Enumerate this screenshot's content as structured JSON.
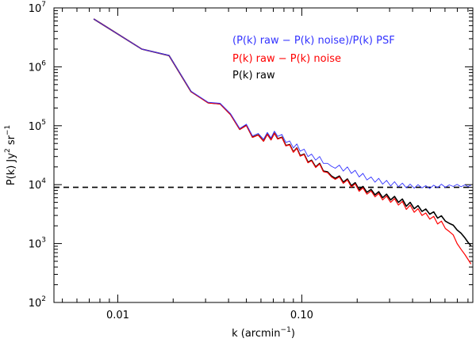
{
  "chart_data": {
    "type": "line",
    "xscale": "log",
    "yscale": "log",
    "xlim": [
      0.0045,
      0.85
    ],
    "ylim": [
      100,
      10000000
    ],
    "xlabel_main": "k (arcmin",
    "xlabel_sup": "−1",
    "xlabel_close": ")",
    "ylabel_main": "P(k) Jy",
    "ylabel_sup1": "2",
    "ylabel_mid": " sr",
    "ylabel_sup2": "−1",
    "xticks": [
      {
        "value": 0.01,
        "label": "0.01"
      },
      {
        "value": 0.1,
        "label": "0.10"
      }
    ],
    "yticks": [
      {
        "value": 100,
        "base": "10",
        "exp": "2"
      },
      {
        "value": 1000,
        "base": "10",
        "exp": "3"
      },
      {
        "value": 10000,
        "base": "10",
        "exp": "4"
      },
      {
        "value": 100000,
        "base": "10",
        "exp": "5"
      },
      {
        "value": 1000000,
        "base": "10",
        "exp": "6"
      },
      {
        "value": 10000000,
        "base": "10",
        "exp": "7"
      }
    ],
    "legend": [
      {
        "label": "(P(k) raw − P(k) noise)/P(k) PSF",
        "color": "#3333ff"
      },
      {
        "label": "P(k) raw − P(k) noise",
        "color": "#ff0000"
      },
      {
        "label": "P(k) raw",
        "color": "#000000"
      }
    ],
    "hline": {
      "value": 9000,
      "style": "dashed",
      "color": "#000000"
    },
    "series": [
      {
        "name": "P(k) raw",
        "color": "#000000",
        "width": 1.6,
        "x": [
          0.0074,
          0.0135,
          0.019,
          0.025,
          0.031,
          0.036,
          0.041,
          0.046,
          0.05,
          0.054,
          0.058,
          0.062,
          0.065,
          0.068,
          0.071,
          0.074,
          0.078,
          0.082,
          0.086,
          0.09,
          0.094,
          0.098,
          0.103,
          0.108,
          0.113,
          0.119,
          0.125,
          0.131,
          0.138,
          0.145,
          0.152,
          0.16,
          0.168,
          0.177,
          0.186,
          0.195,
          0.205,
          0.215,
          0.226,
          0.238,
          0.25,
          0.262,
          0.275,
          0.289,
          0.304,
          0.319,
          0.335,
          0.352,
          0.37,
          0.388,
          0.408,
          0.428,
          0.45,
          0.472,
          0.496,
          0.521,
          0.547,
          0.574,
          0.603,
          0.633,
          0.665,
          0.698,
          0.733,
          0.77,
          0.8,
          0.83
        ],
        "y": [
          6500000,
          2000000,
          1550000,
          380000,
          245000,
          235000,
          155000,
          87000,
          102000,
          64000,
          70000,
          55000,
          72000,
          58000,
          75000,
          60000,
          64000,
          46000,
          48000,
          36000,
          42000,
          31000,
          33000,
          24000,
          26000,
          20000,
          23000,
          17000,
          16500,
          14000,
          12800,
          14000,
          11000,
          12500,
          9600,
          10800,
          8200,
          9300,
          7400,
          8300,
          6700,
          7600,
          6000,
          6900,
          5500,
          6300,
          5000,
          5700,
          4300,
          5000,
          3900,
          4400,
          3500,
          3850,
          3150,
          3450,
          2700,
          2950,
          2400,
          2200,
          2050,
          1700,
          1500,
          1250,
          1050,
          920
        ]
      },
      {
        "name": "P(k) raw − P(k) noise",
        "color": "#ff0000",
        "width": 1.2,
        "x": [
          0.0074,
          0.0135,
          0.019,
          0.025,
          0.031,
          0.036,
          0.041,
          0.046,
          0.05,
          0.054,
          0.058,
          0.062,
          0.065,
          0.068,
          0.071,
          0.074,
          0.078,
          0.082,
          0.086,
          0.09,
          0.094,
          0.098,
          0.103,
          0.108,
          0.113,
          0.119,
          0.125,
          0.131,
          0.138,
          0.145,
          0.152,
          0.16,
          0.168,
          0.177,
          0.186,
          0.195,
          0.205,
          0.215,
          0.226,
          0.238,
          0.25,
          0.262,
          0.275,
          0.289,
          0.304,
          0.319,
          0.335,
          0.352,
          0.37,
          0.388,
          0.408,
          0.428,
          0.45,
          0.472,
          0.496,
          0.521,
          0.547,
          0.574,
          0.603,
          0.633,
          0.665,
          0.698,
          0.733,
          0.77,
          0.8,
          0.83
        ],
        "y": [
          6500000,
          2000000,
          1550000,
          380000,
          244000,
          234000,
          154000,
          86500,
          101000,
          63500,
          69500,
          54500,
          71500,
          57500,
          74500,
          59500,
          63000,
          45500,
          47500,
          35500,
          41500,
          30500,
          32500,
          23500,
          25500,
          19500,
          22500,
          16600,
          16000,
          13500,
          12300,
          13500,
          10500,
          12000,
          9100,
          10300,
          7700,
          8800,
          6900,
          7800,
          6200,
          7100,
          5500,
          6400,
          5000,
          5800,
          4500,
          5200,
          3800,
          4500,
          3400,
          3900,
          3000,
          3300,
          2600,
          2900,
          2150,
          2400,
          1800,
          1600,
          1400,
          1000,
          800,
          650,
          540,
          450
        ]
      },
      {
        "name": "(P(k) raw − P(k) noise)/P(k) PSF",
        "color": "#3333ff",
        "width": 0.9,
        "x": [
          0.0074,
          0.0135,
          0.019,
          0.025,
          0.031,
          0.036,
          0.041,
          0.046,
          0.05,
          0.054,
          0.058,
          0.062,
          0.065,
          0.068,
          0.071,
          0.074,
          0.078,
          0.082,
          0.086,
          0.09,
          0.094,
          0.098,
          0.103,
          0.108,
          0.113,
          0.119,
          0.125,
          0.131,
          0.138,
          0.145,
          0.152,
          0.16,
          0.168,
          0.177,
          0.186,
          0.195,
          0.205,
          0.215,
          0.226,
          0.238,
          0.25,
          0.262,
          0.275,
          0.289,
          0.304,
          0.319,
          0.335,
          0.352,
          0.37,
          0.388,
          0.408,
          0.428,
          0.45,
          0.472,
          0.496,
          0.521,
          0.547,
          0.574,
          0.603,
          0.633,
          0.665,
          0.698,
          0.733,
          0.77,
          0.8,
          0.83
        ],
        "y": [
          6500000,
          2000000,
          1560000,
          385000,
          250000,
          240000,
          160000,
          90000,
          106000,
          67000,
          74000,
          59000,
          77000,
          62000,
          81000,
          66000,
          71000,
          52000,
          55000,
          42000,
          49000,
          37000,
          40000,
          30000,
          33000,
          26000,
          30000,
          23000,
          23000,
          20500,
          19000,
          21500,
          17000,
          20000,
          15500,
          17500,
          13500,
          15500,
          12000,
          13500,
          11000,
          12800,
          10200,
          11800,
          9500,
          11200,
          9200,
          10600,
          8800,
          10200,
          8700,
          10000,
          8800,
          9600,
          8600,
          9800,
          8900,
          10200,
          9000,
          9900,
          9300,
          10100,
          9200,
          9900,
          9300,
          9800
        ]
      }
    ]
  }
}
